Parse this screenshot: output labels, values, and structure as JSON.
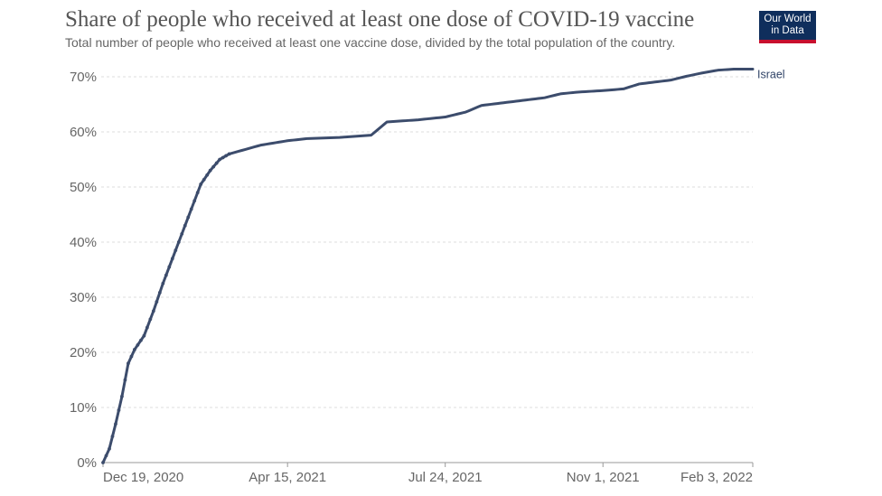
{
  "header": {
    "title": "Share of people who received at least one dose of COVID-19 vaccine",
    "subtitle": "Total number of people who received at least one vaccine dose, divided by the total population of the country."
  },
  "logo": {
    "line1": "Our World",
    "line2": "in Data"
  },
  "colors": {
    "series": "#3c4c6c",
    "grid": "#dddddd",
    "logo_bg": "#0f2e5c",
    "logo_accent": "#c8102e"
  },
  "chart_data": {
    "type": "line",
    "title": "Share of people who received at least one dose of COVID-19 vaccine",
    "subtitle": "Total number of people who received at least one vaccine dose, divided by the total population of the country.",
    "xlabel": "",
    "ylabel": "",
    "ylim": [
      0,
      70
    ],
    "yticks": [
      0,
      10,
      20,
      30,
      40,
      50,
      60,
      70
    ],
    "ytick_labels": [
      "0%",
      "10%",
      "20%",
      "30%",
      "40%",
      "50%",
      "60%",
      "70%"
    ],
    "xlim": [
      0,
      412
    ],
    "xtick_positions": [
      0,
      117,
      217,
      317,
      412
    ],
    "xtick_labels": [
      "Dec 19, 2020",
      "Apr 15, 2021",
      "Jul 24, 2021",
      "Nov 1, 2021",
      "Feb 3, 2022"
    ],
    "x_unit": "days since Dec 19, 2020",
    "y_unit": "percent",
    "grid": true,
    "series": [
      {
        "name": "Israel",
        "x": [
          0,
          4,
          8,
          12,
          16,
          20,
          26,
          32,
          38,
          44,
          50,
          56,
          62,
          68,
          74,
          80,
          90,
          100,
          117,
          130,
          150,
          170,
          180,
          190,
          200,
          217,
          230,
          240,
          260,
          280,
          290,
          300,
          317,
          330,
          340,
          360,
          370,
          380,
          390,
          400,
          412
        ],
        "values": [
          0,
          2.5,
          7,
          12,
          18,
          20.5,
          23,
          27.5,
          32.5,
          37,
          41.5,
          46,
          50.5,
          53,
          55,
          56,
          56.8,
          57.6,
          58.4,
          58.8,
          59,
          59.4,
          61.8,
          62,
          62.2,
          62.7,
          63.6,
          64.8,
          65.5,
          66.2,
          66.9,
          67.2,
          67.5,
          67.8,
          68.7,
          69.4,
          70.1,
          70.7,
          71.2,
          71.4,
          71.4
        ]
      }
    ]
  }
}
